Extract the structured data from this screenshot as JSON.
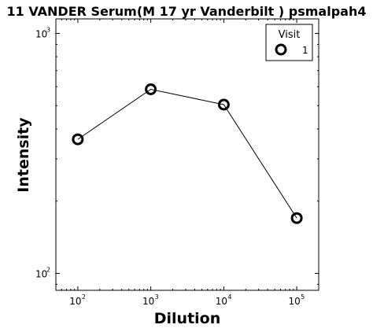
{
  "chart_data": {
    "type": "line",
    "title": "11 VANDER Serum(M 17 yr Vanderbilt ) psmalpah4",
    "xlabel": "Dilution",
    "ylabel": "Intensity",
    "x_scale": "log",
    "y_scale": "log",
    "xlim": [
      50,
      200000
    ],
    "ylim": [
      85,
      1150
    ],
    "x_ticks": [
      {
        "value": 100,
        "base": "10",
        "exp": "2"
      },
      {
        "value": 1000,
        "base": "10",
        "exp": "3"
      },
      {
        "value": 10000,
        "base": "10",
        "exp": "4"
      },
      {
        "value": 100000,
        "base": "10",
        "exp": "5"
      }
    ],
    "y_ticks": [
      {
        "value": 100,
        "base": "10",
        "exp": "2"
      },
      {
        "value": 1000,
        "base": "10",
        "exp": "3"
      }
    ],
    "grid": false,
    "legend": {
      "title": "Visit",
      "placement": "top-right"
    },
    "series": [
      {
        "name": "1",
        "marker": "open-circle",
        "color": "#000000",
        "x": [
          100,
          1000,
          10000,
          100000
        ],
        "y": [
          362,
          585,
          505,
          170
        ]
      }
    ]
  }
}
